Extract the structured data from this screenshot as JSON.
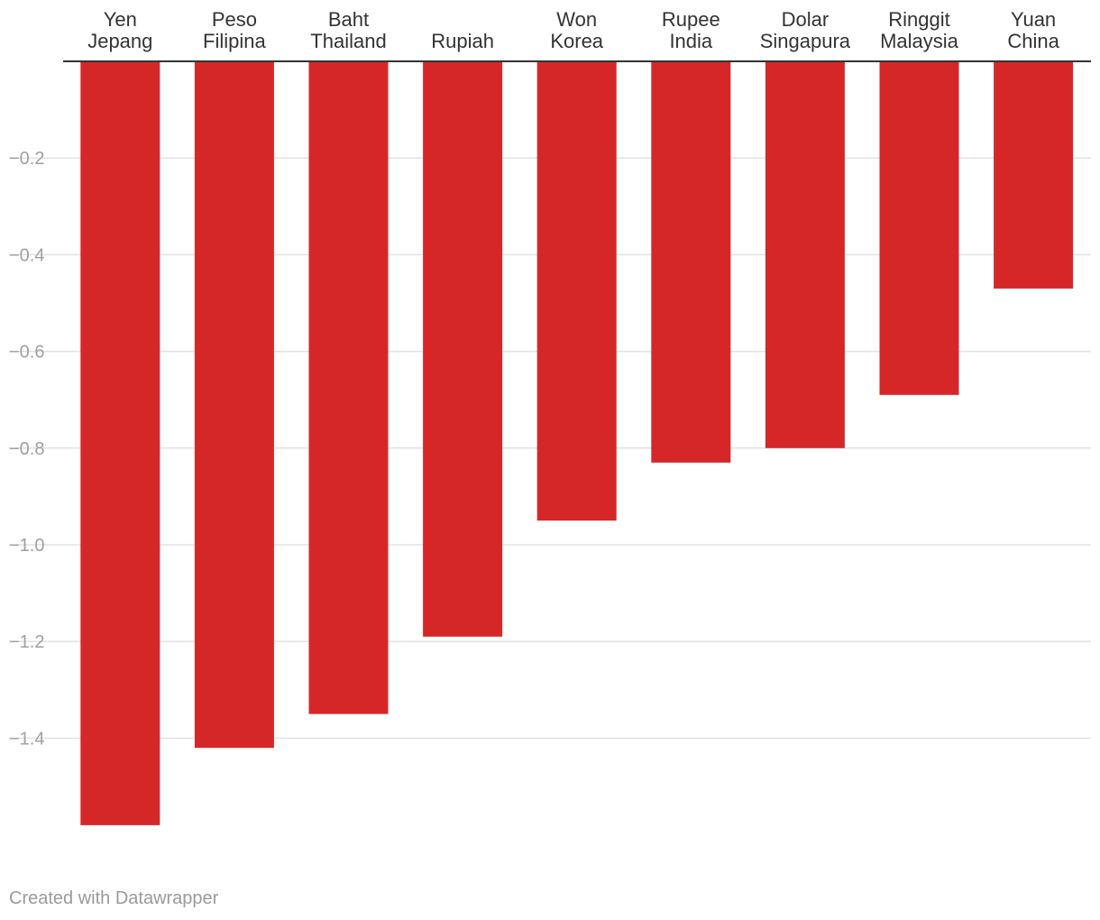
{
  "chart_data": {
    "type": "bar",
    "orientation": "vertical-negative",
    "categories": [
      [
        "Yen",
        "Jepang"
      ],
      [
        "Peso",
        "Filipina"
      ],
      [
        "Baht",
        "Thailand"
      ],
      [
        "Rupiah"
      ],
      [
        "Won",
        "Korea"
      ],
      [
        "Rupee",
        "India"
      ],
      [
        "Dolar",
        "Singapura"
      ],
      [
        "Ringgit",
        "Malaysia"
      ],
      [
        "Yuan",
        "China"
      ]
    ],
    "values": [
      -1.58,
      -1.42,
      -1.35,
      -1.19,
      -0.95,
      -0.83,
      -0.8,
      -0.69,
      -0.47
    ],
    "y_ticks": [
      -0.2,
      -0.4,
      -0.6,
      -0.8,
      -1.0,
      -1.2,
      -1.4
    ],
    "y_tick_labels": [
      "−0.2",
      "−0.4",
      "−0.6",
      "−0.8",
      "−1.0",
      "−1.2",
      "−1.4"
    ],
    "ylim": [
      -1.6,
      0
    ],
    "category_labels_position": "top",
    "grid": true,
    "bar_color": "#d62728"
  },
  "footer": {
    "credit": "Created with Datawrapper"
  }
}
